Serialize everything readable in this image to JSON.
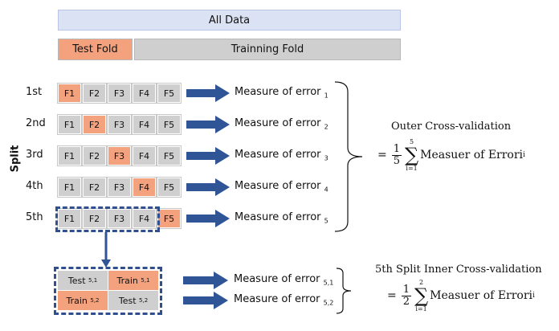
{
  "header": {
    "all_data": "All Data",
    "test_fold": "Test Fold",
    "training_fold": "Trainning Fold"
  },
  "axis_label": "Split",
  "fold_labels": [
    "F1",
    "F2",
    "F3",
    "F4",
    "F5"
  ],
  "splits": [
    {
      "label": "1st",
      "test_index": 0,
      "measure": "Measure of error",
      "sub": "1"
    },
    {
      "label": "2nd",
      "test_index": 1,
      "measure": "Measure of error",
      "sub": "2"
    },
    {
      "label": "3rd",
      "test_index": 2,
      "measure": "Measure of error",
      "sub": "3"
    },
    {
      "label": "4th",
      "test_index": 3,
      "measure": "Measure of error",
      "sub": "4"
    },
    {
      "label": "5th",
      "test_index": 4,
      "measure": "Measure of error",
      "sub": "5"
    }
  ],
  "outer": {
    "title": "Outer Cross-validation",
    "equals": "=",
    "frac_num": "1",
    "frac_den": "5",
    "sum_top": "5",
    "sum_bottom": "i=1",
    "term": "Measuer of Errori",
    "term_sub": "i"
  },
  "inner_grid": [
    {
      "label": "Test",
      "sub": "5,1",
      "kind": "gray"
    },
    {
      "label": "Train",
      "sub": "5,1",
      "kind": "orange"
    },
    {
      "label": "Train",
      "sub": "5,2",
      "kind": "orange"
    },
    {
      "label": "Test",
      "sub": "5,2",
      "kind": "gray"
    }
  ],
  "inner_measures": [
    {
      "text": "Measure of error",
      "sub": "5,1"
    },
    {
      "text": "Measure of error",
      "sub": "5,2"
    }
  ],
  "inner": {
    "title": "5th Split Inner Cross-validation",
    "equals": "=",
    "frac_num": "1",
    "frac_den": "2",
    "sum_top": "2",
    "sum_bottom": "i=1",
    "term": "Measuer of Errori",
    "term_sub": "i"
  },
  "colors": {
    "orange": "#f4a27e",
    "gray": "#cfcfcf",
    "blue_arrow": "#2f5597",
    "header_blue": "#dbe2f4"
  }
}
